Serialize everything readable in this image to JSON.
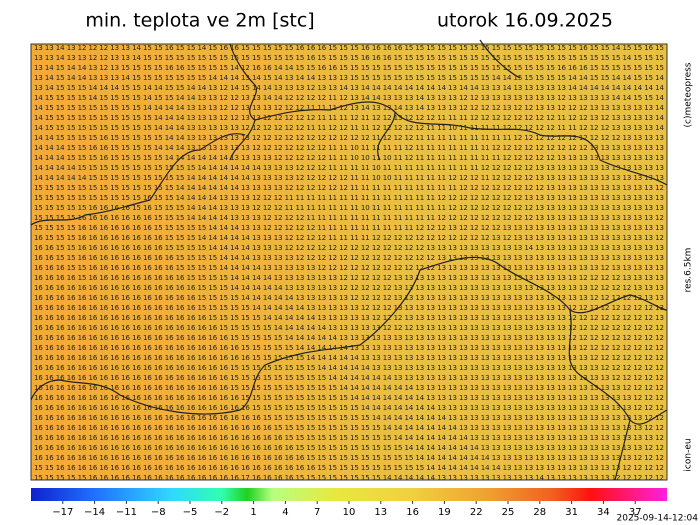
{
  "header": {
    "title": "min. teplota ve 2m [stc]",
    "date": "utorok 16.09.2025"
  },
  "side": {
    "copyright": "(c)meteopress",
    "resolution": "res.6.5km",
    "model": "icon-eu"
  },
  "footer": {
    "run_time": "2025-09-14-12:04"
  },
  "colorbar": {
    "lim": [
      -20,
      40
    ],
    "ticks": [
      {
        "value": -17,
        "label": "−17"
      },
      {
        "value": -14,
        "label": "−14"
      },
      {
        "value": -11,
        "label": "−11"
      },
      {
        "value": -8,
        "label": "−8"
      },
      {
        "value": -5,
        "label": "−5"
      },
      {
        "value": -2,
        "label": "−2"
      },
      1,
      4,
      7,
      10,
      13,
      16,
      19,
      22,
      25,
      28,
      31,
      34,
      37
    ]
  },
  "grid": {
    "rows": [
      "13 13 14 13 12 12 12 13 13 14 15 15 16 15 15 14 15 16 16 15 15 15 15 15 16 16 16 15 15 15 16 16 16 16 15 15 15 15 15 15 15 15 15 15 15 15 15 15 15 15 16 15 15 14 15 15 16 15",
      "13 13 14 13 13 12 12 13 13 14 15 15 15 15 15 15 15 15 15 15 15 15 15 15 15 16 15 15 15 15 16 16 16 15 15 15 15 15 15 15 15 15 15 15 15 15 15 15 15 15 15 15 15 15 14 15 15 15",
      "13 14 15 14 14 13 12 13 15 15 15 15 16 16 15 15 15 15 14 12 16 16 14 14 15 15 16 16 15 15 15 15 15 15 15 15 15 15 15 15 15 15 15 15 15 15 15 15 16 16 16 15 15 15 15 15 15 15",
      "13 14 15 14 14 13 13 13 14 15 15 15 15 15 15 15 14 14 14 13 14 15 14 13 14 14 13 13 13 15 15 15 15 15 15 15 15 15 15 15 15 15 14 14 15 15 15 15 15 14 14 15 15 14 14 15 15 14",
      "13 14 15 15 15 14 14 14 15 15 14 14 15 15 14 14 13 12 14 15 14 14 13 13 13 12 13 13 14 13 14 14 14 14 14 14 14 14 13 14 14 13 13 14 13 13 13 13 13 14 14 14 14 14 14 14 14 14",
      "14 15 15 15 15 14 15 15 15 15 14 15 15 14 14 13 13 12 12 13 13 14 14 12 12 12 12 11 12 13 14 14 13 13 13 14 13 13 13 12 12 13 13 13 13 13 13 13 12 13 13 13 13 14 14 15 15 14",
      "14 15 15 15 15 15 15 15 15 15 14 14 14 14 13 13 13 12 12 13 13 13 12 12 12 11 11 11 12 13 14 13 13 14 13 14 13 13 13 12 12 12 12 13 12 12 13 13 12 12 12 13 13 13 13 13 13 14",
      "14 15 15 15 15 15 15 15 15 15 15 14 14 14 13 13 13 12 12 13 13 12 12 12 12 12 11 11 11 12 11 12 12 13 12 12 12 11 11 11 12 12 12 12 12 12 12 12 11 12 12 13 12 13 13 13 13 14",
      "14 15 15 15 15 15 15 15 15 15 15 14 14 14 13 13 13 13 13 12 12 12 12 12 12 11 11 12 12 11 11 12 12 12 12 12 11 11 10 11 11 11 11 12 12 12 12 12 11 11 12 12 12 13 13 13 13 14",
      "14 14 15 15 15 15 16 15 15 15 15 15 14 14 13 13 13 13 13 13 12 12 12 12 12 12 12 12 12 12 12 11 12 12 12 11 11 11 11 11 11 11 11 11 12 12 12 12 12 12 12 12 12 12 13 13 13 13",
      "14 14 14 15 15 16 16 15 15 15 15 14 14 14 13 13 13 13 13 13 12 12 12 12 12 12 12 11 11 10 11 11 11 11 12 11 11 11 11 11 11 11 12 12 12 12 12 12 12 12 12 13 13 13 13 13 13 13",
      "14 14 14 15 15 15 16 15 15 15 15 15 14 14 14 14 14 14 13 13 13 13 12 12 12 12 12 11 11 10 10 11 10 11 12 11 11 11 11 11 11 11 11 12 12 12 12 12 13 13 13 13 13 13 13 13 13 13",
      "14 14 14 14 15 15 15 15 15 15 15 15 15 15 15 14 14 14 14 14 14 13 13 13 12 12 12 11 11 11 11 10 11 11 11 11 11 11 11 11 11 12 12 12 12 12 13 13 13 13 13 13 13 13 13 13 13 13",
      "14 14 14 14 14 15 15 15 15 15 15 15 15 15 14 14 14 14 14 14 13 13 13 13 12 12 12 12 12 11 11 10 10 11 11 11 11 11 12 12 12 11 12 12 12 12 13 13 13 13 13 13 13 13 13 13 13 13",
      "15 15 15 15 15 15 15 15 15 15 15 15 15 14 14 14 14 14 14 13 13 13 13 12 12 12 12 12 12 11 11 11 11 11 11 11 11 11 11 12 12 12 12 12 12 12 12 13 13 13 13 13 13 13 13 13 13 12",
      "15 15 15 15 15 15 15 15 15 15 16 15 15 14 14 14 14 13 13 13 12 12 12 11 11 11 11 11 11 11 11 11 11 11 11 11 11 12 12 12 12 12 12 12 12 13 13 13 13 13 13 13 13 13 13 13 13 13",
      "15 15 15 15 15 16 16 16 16 15 16 15 15 15 14 14 14 13 13 13 12 12 12 11 11 11 11 11 11 11 10 11 11 11 11 11 11 11 12 12 12 12 12 12 12 12 13 13 13 13 13 13 13 13 13 13 13 13",
      "15 15 15 15 16 16 16 16 16 16 16 15 15 15 14 14 14 14 13 13 13 12 12 12 12 11 11 11 11 11 11 11 11 11 11 11 11 12 12 12 12 12 12 12 12 12 13 13 13 13 13 13 13 13 13 13 13 12",
      "15 15 15 15 16 16 16 16 16 16 16 15 15 15 15 15 14 14 14 13 13 12 12 12 12 12 11 11 11 11 11 11 11 11 11 12 12 12 13 12 12 12 12 13 13 13 13 13 13 13 13 13 13 13 13 13 13 13",
      "16 15 15 15 16 16 16 16 16 16 16 16 15 15 15 14 14 14 14 14 13 13 13 12 12 12 12 11 11 11 11 12 12 12 12 12 12 12 12 12 12 12 13 12 13 13 13 13 13 13 13 13 13 13 13 13 13 12",
      "16 16 15 15 16 16 16 16 16 16 16 16 15 15 15 15 14 14 14 14 13 13 13 12 12 12 12 12 12 12 12 12 12 12 12 12 13 13 13 13 13 13 13 13 13 14 13 13 13 13 13 13 13 13 13 13 13 13",
      "16 16 15 15 16 16 16 16 16 16 16 16 16 15 15 15 15 14 14 14 13 13 13 13 12 12 12 12 12 12 12 12 12 12 12 12 12 13 13 13 13 13 13 13 13 13 13 13 13 13 13 13 13 13 13 13 13 13",
      "16 16 16 15 15 16 16 16 16 16 16 16 16 15 15 15 15 14 14 14 14 13 13 13 13 13 12 12 12 12 12 12 12 12 12 12 12 13 13 13 13 13 13 13 13 13 13 13 13 13 13 13 12 13 13 13 13 13",
      "16 16 16 16 15 16 16 16 16 16 16 16 16 16 15 15 15 15 14 14 14 14 13 13 13 13 13 13 12 12 12 12 12 13 13 13 13 13 13 13 13 13 13 13 13 13 13 13 13 13 12 12 12 12 13 13 13 13",
      "16 16 16 16 16 16 16 16 16 16 16 16 16 16 16 15 15 15 14 14 14 14 14 13 13 13 13 13 12 12 12 12 12 13 13 13 13 13 13 13 13 13 13 13 13 13 13 13 13 13 13 12 12 12 12 13 13 13",
      "16 16 16 16 16 16 16 16 16 16 16 16 16 16 16 15 15 15 15 14 14 14 14 14 13 13 13 13 13 12 12 12 12 13 13 13 13 13 13 13 13 13 13 13 13 13 13 13 13 13 13 12 12 12 12 12 13 13",
      "16 16 16 16 16 16 16 16 16 16 16 16 16 16 16 15 15 15 15 15 14 14 14 14 14 13 13 13 13 13 12 12 12 13 13 13 13 13 13 13 13 13 13 13 13 13 13 13 13 12 12 12 12 12 12 12 12 13",
      "16 16 16 16 16 16 16 16 16 16 16 16 16 16 16 16 15 15 15 15 15 14 14 14 14 14 13 13 13 13 13 12 12 12 13 13 13 13 13 13 13 13 13 13 13 13 13 13 13 12 12 12 12 12 12 12 12 13",
      "16 16 16 16 16 16 16 16 16 16 16 16 16 16 16 16 16 15 15 15 15 15 14 14 14 14 14 13 13 13 13 13 12 12 12 13 13 13 13 13 13 13 13 13 13 13 13 13 13 12 12 12 12 12 12 12 12 12",
      "16 16 16 16 16 16 16 16 16 16 16 16 16 16 16 16 16 16 15 15 15 15 15 14 14 14 14 14 13 13 13 13 13 13 13 13 13 13 13 13 13 13 13 13 13 13 13 13 13 12 12 12 12 12 12 12 12 12",
      "16 16 16 16 16 16 16 16 16 16 16 16 16 16 16 16 16 16 16 15 15 15 15 15 14 14 14 14 14 13 13 13 13 13 13 13 13 13 13 13 13 13 13 13 13 13 13 13 13 13 12 12 12 12 12 12 12 12",
      "16 16 16 16 16 16 16 16 16 16 16 16 16 16 16 16 16 16 16 16 15 15 15 15 15 14 14 14 14 14 13 13 13 13 13 13 13 13 13 13 13 13 13 13 13 13 13 13 13 13 13 12 12 12 12 12 12 12",
      "16 16 16 16 16 16 16 16 16 16 16 16 16 16 16 16 16 16 15 15 15 15 15 15 15 15 14 14 14 14 14 13 13 13 13 13 13 13 13 13 13 13 13 13 13 13 13 13 13 13 13 13 12 12 12 12 12 12",
      "16 16 16 16 16 16 16 16 16 16 16 16 16 16 16 16 16 16 15 15 15 15 15 15 15 15 15 14 14 14 14 14 14 13 13 13 13 13 13 13 13 13 13 13 13 13 13 13 13 13 13 13 13 12 12 12 12 12",
      "16 16 16 16 16 16 16 16 16 16 16 16 16 16 16 16 16 16 15 15 15 15 15 15 15 15 15 15 14 14 14 14 14 14 14 13 13 13 13 13 13 13 13 13 13 13 13 13 13 13 13 13 13 13 12 12 12 12",
      "16 16 16 16 16 16 16 16 16 16 16 16 16 16 16 16 16 16 16 15 15 15 15 15 15 15 15 15 15 14 14 14 14 14 14 14 13 13 13 13 13 13 13 13 13 13 13 13 13 13 13 13 13 13 13 12 12 12",
      "16 16 16 16 16 16 16 16 16 16 16 16 16 16 16 16 16 16 16 16 15 15 15 15 15 15 15 15 15 15 14 14 14 14 14 14 14 13 13 13 13 13 13 13 13 13 13 13 13 13 13 13 13 13 13 12 12 12",
      "16 16 16 16 16 16 16 16 16 16 16 16 16 16 16 16 16 16 16 16 16 15 15 15 15 15 15 15 15 15 15 14 14 14 14 14 14 14 13 13 13 13 13 13 13 13 13 13 13 13 13 13 13 13 13 13 12 12",
      "16 16 16 16 16 16 16 16 16 16 16 16 16 16 16 16 16 16 16 16 16 16 15 15 15 15 15 15 15 15 15 15 14 14 14 14 14 14 14 13 13 13 13 13 13 13 13 13 13 13 13 13 13 13 13 13 12 12",
      "16 16 16 16 16 16 16 16 16 16 16 16 16 16 16 16 16 16 16 16 16 16 16 15 15 15 15 15 15 15 15 15 15 14 14 14 14 14 14 14 13 13 13 13 13 13 13 13 13 13 13 13 13 13 13 13 13 12",
      "16 16 16 16 16 16 16 16 16 16 16 16 16 16 16 16 16 16 16 16 16 16 16 16 15 15 15 15 15 15 15 15 15 15 14 14 14 14 14 14 14 13 13 13 13 13 13 13 13 13 13 13 13 13 13 13 12 12",
      "16 16 16 16 16 16 16 16 16 16 16 16 16 16 16 16 16 16 16 16 16 16 16 16 16 15 15 15 15 15 15 15 15 15 15 14 14 14 14 14 14 14 13 13 13 13 13 13 13 13 13 13 13 13 13 12 12 12",
      "15 15 16 16 16 16 16 16 16 16 16 16 16 16 16 16 16 16 16 16 16 16 16 16 16 16 15 15 15 15 15 15 15 15 15 15 14 14 14 14 14 14 14 13 13 13 13 13 13 13 13 13 13 13 12 12 12 12",
      "15 15 15 15 15 16 16 16 16 16 16 16 16 16 16 16 16 16 16 17 16 16 16 16 15 15 15 15 15 15 15 15 14 14 14 14 14 13 13 13 13 13 13 13 13 13 14 13 13 13 13 13 13 12 12 12 12 12"
    ]
  }
}
